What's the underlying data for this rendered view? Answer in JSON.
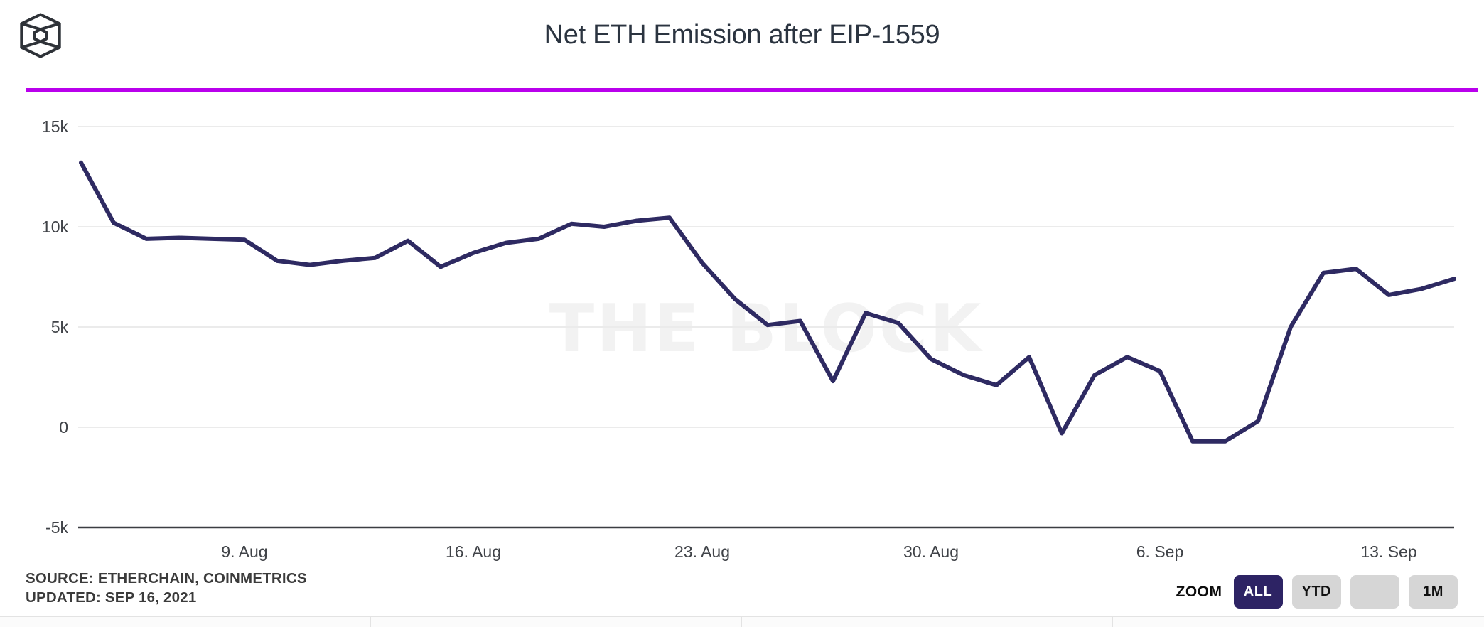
{
  "header": {
    "title": "Net ETH Emission after EIP-1559",
    "logo_name": "the-block-logo"
  },
  "chart_data": {
    "type": "line",
    "title": "Net ETH Emission after EIP-1559",
    "series_name": "Net ETH emission",
    "unit": "thousand ETH",
    "dates": [
      "4. Aug",
      "5. Aug",
      "6. Aug",
      "7. Aug",
      "8. Aug",
      "9. Aug",
      "10. Aug",
      "11. Aug",
      "12. Aug",
      "13. Aug",
      "14. Aug",
      "15. Aug",
      "16. Aug",
      "17. Aug",
      "18. Aug",
      "19. Aug",
      "20. Aug",
      "21. Aug",
      "22. Aug",
      "23. Aug",
      "24. Aug",
      "25. Aug",
      "26. Aug",
      "27. Aug",
      "28. Aug",
      "29. Aug",
      "30. Aug",
      "31. Aug",
      "1. Sep",
      "2. Sep",
      "3. Sep",
      "4. Sep",
      "5. Sep",
      "6. Sep",
      "7. Sep",
      "8. Sep",
      "9. Sep",
      "10. Sep",
      "11. Sep",
      "12. Sep",
      "13. Sep",
      "14. Sep",
      "15. Sep"
    ],
    "values": [
      13.2,
      10.2,
      9.4,
      9.45,
      9.4,
      9.35,
      8.3,
      8.1,
      8.3,
      8.45,
      9.3,
      8.0,
      8.7,
      9.2,
      9.4,
      10.15,
      10.0,
      10.3,
      10.45,
      8.2,
      6.4,
      5.1,
      5.3,
      2.3,
      5.7,
      5.2,
      3.4,
      2.6,
      2.1,
      3.5,
      -0.3,
      2.6,
      3.5,
      2.8,
      -0.7,
      -0.7,
      0.3,
      5.0,
      7.7,
      7.9,
      6.6,
      6.9,
      7.4
    ],
    "x_tick_labels": [
      "9. Aug",
      "16. Aug",
      "23. Aug",
      "30. Aug",
      "6. Sep",
      "13. Sep"
    ],
    "x_tick_indices": [
      5,
      12,
      19,
      26,
      33,
      40
    ],
    "y_ticks": [
      {
        "value": 15,
        "label": "15k"
      },
      {
        "value": 10,
        "label": "10k"
      },
      {
        "value": 5,
        "label": "5k"
      },
      {
        "value": 0,
        "label": "0"
      },
      {
        "value": -5,
        "label": "-5k"
      }
    ],
    "ylim": [
      -5,
      15
    ],
    "grid": "horizontal",
    "legend": "none",
    "line_color": "#2e2a62",
    "watermark": "THE BLOCK"
  },
  "footer": {
    "source": "SOURCE: ETHERCHAIN, COINMETRICS",
    "updated": "UPDATED: SEP 16, 2021"
  },
  "zoom": {
    "label": "ZOOM",
    "buttons": [
      {
        "label": "ALL",
        "active": true
      },
      {
        "label": "YTD",
        "active": false
      },
      {
        "label": "",
        "active": false
      },
      {
        "label": "1M",
        "active": false
      }
    ]
  },
  "colors": {
    "accent_divider": "#b900ec",
    "line": "#2e2a62",
    "active_button_bg": "#2d2364",
    "inactive_button_bg": "#d6d6d6",
    "gridline": "#ebebeb",
    "axis_line": "#3b3d42",
    "title_text": "#2b3440",
    "watermark_text": "#f2f2f2"
  }
}
